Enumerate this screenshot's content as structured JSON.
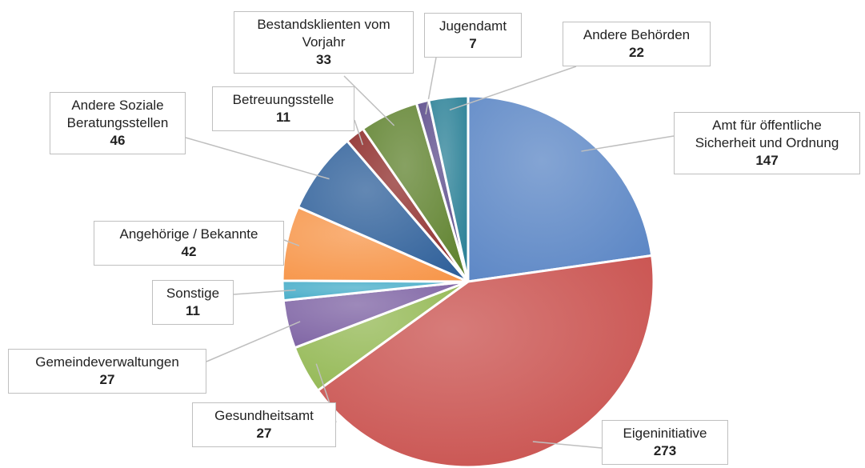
{
  "chart_data": {
    "type": "pie",
    "categories": [
      "Amt für öffentliche Sicherheit und Ordnung",
      "Eigeninitiative",
      "Gesundheitsamt",
      "Gemeindeverwaltungen",
      "Sonstige",
      "Angehörige / Bekannte",
      "Andere Soziale Beratungsstellen",
      "Betreuungsstelle",
      "Bestandsklienten vom Vorjahr",
      "Jugendamt",
      "Andere Behörden"
    ],
    "values": [
      147,
      273,
      27,
      27,
      11,
      42,
      46,
      11,
      33,
      7,
      22
    ],
    "colors": [
      "#5b86c5",
      "#c9504d",
      "#93b853",
      "#7d62a3",
      "#45acc8",
      "#f7964a",
      "#2f609a",
      "#8e2c2a",
      "#5f822e",
      "#5a4a8a",
      "#2a8096"
    ]
  }
}
